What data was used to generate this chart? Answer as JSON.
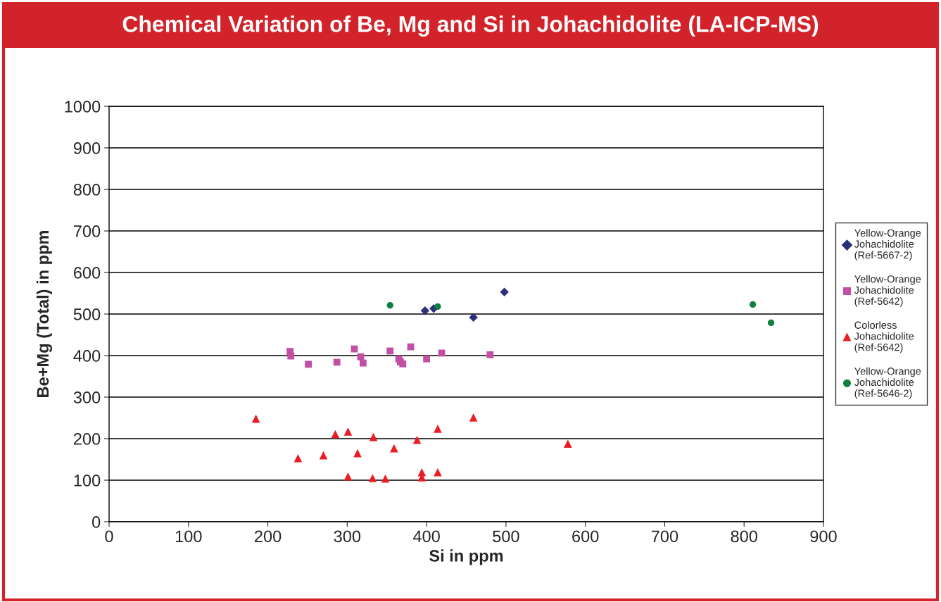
{
  "chart_data": {
    "type": "scatter",
    "title": "Chemical Variation of Be, Mg and Si in Johachidolite (LA-ICP-MS)",
    "xlabel": "Si in ppm",
    "ylabel": "Be+Mg (Total) in ppm",
    "xlim": [
      0,
      900
    ],
    "xticks": [
      0,
      100,
      200,
      300,
      400,
      500,
      600,
      700,
      800,
      900
    ],
    "ylim": [
      0,
      1000
    ],
    "yticks": [
      0,
      100,
      200,
      300,
      400,
      500,
      600,
      700,
      800,
      900,
      1000
    ],
    "grid": "y",
    "legend": "right",
    "series": [
      {
        "name": "Yellow-Orange Johachidolite (Ref-5667-2)",
        "color": "#2b2f7c",
        "marker": "diamond",
        "x": [
          398,
          409,
          459,
          498
        ],
        "values": [
          508,
          513,
          492,
          553
        ]
      },
      {
        "name": "Yellow-Orange Johachidolite (Ref-5642)",
        "color": "#c150a4",
        "marker": "square",
        "x": [
          228,
          229,
          251,
          287,
          309,
          317,
          320,
          354,
          365,
          367,
          370,
          380,
          400,
          419,
          480
        ],
        "values": [
          410,
          399,
          379,
          384,
          416,
          397,
          382,
          411,
          392,
          385,
          380,
          421,
          392,
          406,
          402
        ]
      },
      {
        "name": "Colorless Johachidolite (Ref-5642)",
        "color": "#ec1c24",
        "marker": "triangle",
        "x": [
          185,
          238,
          270,
          285,
          301,
          301,
          313,
          333,
          332,
          348,
          359,
          388,
          394,
          394,
          414,
          414,
          459,
          578
        ],
        "values": [
          248,
          153,
          160,
          211,
          217,
          109,
          165,
          204,
          105,
          104,
          177,
          197,
          119,
          107,
          224,
          119,
          251,
          188
        ]
      },
      {
        "name": "Yellow-Orange Johachidolite (Ref-5646-2)",
        "color": "#0f8040",
        "marker": "circle",
        "x": [
          354,
          414,
          811,
          834
        ],
        "values": [
          521,
          518,
          523,
          479
        ]
      }
    ]
  }
}
